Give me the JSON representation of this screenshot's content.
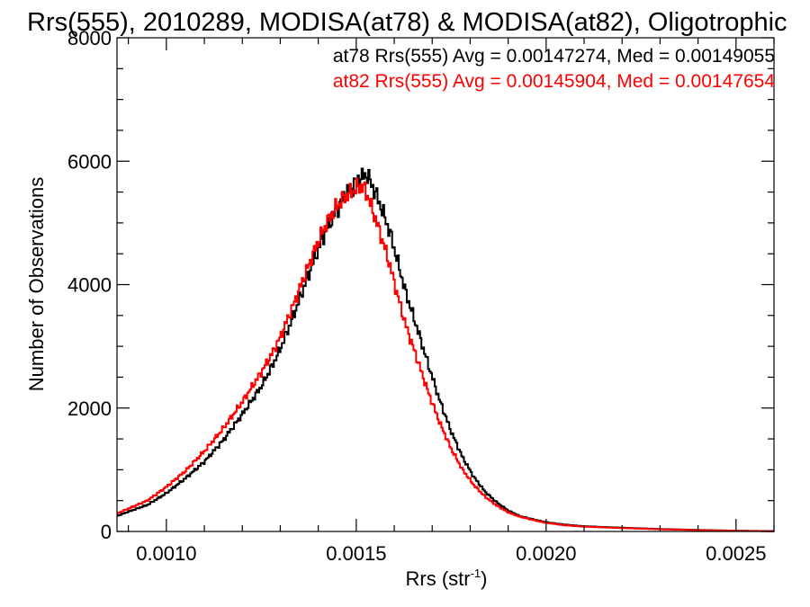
{
  "chart_data": {
    "type": "line",
    "title": "Rrs(555), 2010289, MODISA(at78) & MODISA(at82), Oligotrophic",
    "xlabel": "Rrs (str",
    "xlabel_sup": "-1",
    "xlabel_close": ")",
    "ylabel": "Number of Observations",
    "xlim": [
      0.00087,
      0.0026
    ],
    "ylim": [
      0,
      8000
    ],
    "x_ticks": [
      0.001,
      0.0015,
      0.002,
      0.0025
    ],
    "x_tick_labels": [
      "0.0010",
      "0.0015",
      "0.0020",
      "0.0025"
    ],
    "y_ticks": [
      0,
      2000,
      4000,
      6000,
      8000
    ],
    "y_tick_labels": [
      "0",
      "2000",
      "4000",
      "6000",
      "8000"
    ],
    "legend_position": "top-right",
    "series": [
      {
        "name": "at78",
        "color": "#000000",
        "legend": "at78 Rrs(555) Avg = 0.00147274, Med = 0.00149055",
        "x": [
          0.00087,
          0.0009,
          0.00095,
          0.001,
          0.00105,
          0.0011,
          0.00115,
          0.0012,
          0.00125,
          0.00128,
          0.0013,
          0.00133,
          0.00136,
          0.00139,
          0.00142,
          0.00145,
          0.00147,
          0.00149,
          0.0015,
          0.00151,
          0.00152,
          0.00153,
          0.00154,
          0.00155,
          0.00157,
          0.00159,
          0.00161,
          0.00163,
          0.00166,
          0.00169,
          0.00172,
          0.00175,
          0.00178,
          0.00181,
          0.00184,
          0.00187,
          0.0019,
          0.00193,
          0.00197,
          0.002,
          0.00205,
          0.0021,
          0.0022,
          0.0023,
          0.0024,
          0.0025,
          0.0026
        ],
        "values": [
          250,
          320,
          430,
          620,
          860,
          1130,
          1480,
          1900,
          2350,
          2700,
          2960,
          3420,
          3920,
          4420,
          4880,
          5220,
          5450,
          5580,
          5680,
          5720,
          5760,
          5780,
          5620,
          5500,
          5180,
          4820,
          4350,
          3880,
          3300,
          2700,
          2120,
          1620,
          1200,
          880,
          640,
          470,
          340,
          250,
          190,
          150,
          110,
          85,
          60,
          40,
          25,
          12,
          5
        ]
      },
      {
        "name": "at82",
        "color": "#ff0000",
        "legend": "at82 Rrs(555) Avg = 0.00145904, Med = 0.00147654",
        "x": [
          0.00087,
          0.0009,
          0.00095,
          0.001,
          0.00105,
          0.0011,
          0.00115,
          0.0012,
          0.00125,
          0.00128,
          0.0013,
          0.00133,
          0.00136,
          0.00139,
          0.00142,
          0.00145,
          0.00147,
          0.00149,
          0.0015,
          0.00151,
          0.00152,
          0.00153,
          0.00154,
          0.00155,
          0.00157,
          0.00159,
          0.00161,
          0.00163,
          0.00166,
          0.00169,
          0.00172,
          0.00175,
          0.00178,
          0.00181,
          0.00184,
          0.00187,
          0.0019,
          0.00193,
          0.00197,
          0.002,
          0.00205,
          0.0021,
          0.0022,
          0.0023,
          0.0024,
          0.0025,
          0.0026
        ],
        "values": [
          290,
          370,
          500,
          720,
          980,
          1300,
          1670,
          2100,
          2580,
          2900,
          3150,
          3600,
          4080,
          4550,
          4980,
          5280,
          5420,
          5510,
          5560,
          5600,
          5560,
          5450,
          5250,
          5080,
          4700,
          4280,
          3800,
          3350,
          2800,
          2250,
          1760,
          1340,
          1000,
          750,
          560,
          420,
          310,
          240,
          180,
          140,
          100,
          78,
          55,
          36,
          22,
          10,
          4
        ]
      }
    ]
  }
}
